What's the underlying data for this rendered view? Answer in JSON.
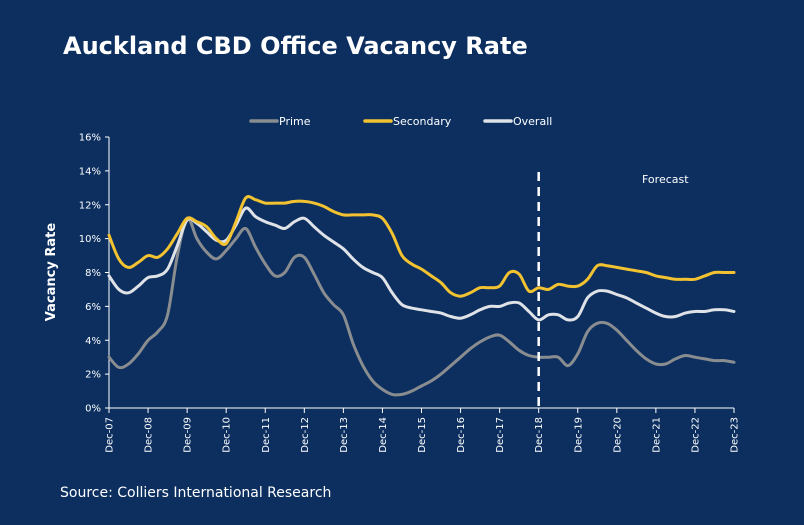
{
  "title": "Auckland CBD Office Vacancy Rate",
  "source": "Source: Colliers International Research",
  "chart_data": {
    "type": "line",
    "ylabel": "Vacancy Rate",
    "ylim": [
      0,
      16
    ],
    "yticks": [
      0,
      2,
      4,
      6,
      8,
      10,
      12,
      14,
      16
    ],
    "ytick_format": "percent",
    "xlim": [
      0,
      16
    ],
    "xtick_labels": [
      "Dec-07",
      "Dec-08",
      "Dec-09",
      "Dec-10",
      "Dec-11",
      "Dec-12",
      "Dec-13",
      "Dec-14",
      "Dec-15",
      "Dec-16",
      "Dec-17",
      "Dec-18",
      "Dec-19",
      "Dec-20",
      "Dec-21",
      "Dec-22",
      "Dec-23"
    ],
    "grid": false,
    "legend_position": "top",
    "forecast": {
      "label": "Forecast",
      "x": 11
    },
    "colors": {
      "background": "#0c2f60",
      "Prime": "#8a8d90",
      "Secondary": "#f2c230",
      "Overall": "#dfe2e6"
    },
    "series": [
      {
        "name": "Prime",
        "x": [
          0,
          0.25,
          0.5,
          0.75,
          1,
          1.25,
          1.5,
          1.75,
          2,
          2.25,
          2.5,
          2.75,
          3,
          3.25,
          3.5,
          3.75,
          4,
          4.25,
          4.5,
          4.75,
          5,
          5.25,
          5.5,
          5.75,
          6,
          6.25,
          6.5,
          6.75,
          7,
          7.25,
          7.5,
          7.75,
          8,
          8.25,
          8.5,
          8.75,
          9,
          9.25,
          9.5,
          9.75,
          10,
          10.25,
          10.5,
          10.75,
          11,
          11.25,
          11.5,
          11.75,
          12,
          12.25,
          12.5,
          12.75,
          13,
          13.25,
          13.5,
          13.75,
          14,
          14.25,
          14.5,
          14.75,
          15,
          15.25,
          15.5,
          15.75,
          16
        ],
        "values": [
          3.0,
          2.4,
          2.6,
          3.2,
          4.0,
          4.5,
          5.5,
          9.0,
          11.2,
          10.0,
          9.2,
          8.8,
          9.3,
          10.0,
          10.6,
          9.5,
          8.5,
          7.8,
          8.0,
          8.9,
          8.9,
          7.9,
          6.8,
          6.1,
          5.5,
          3.8,
          2.5,
          1.6,
          1.1,
          0.8,
          0.8,
          1.0,
          1.3,
          1.6,
          2.0,
          2.5,
          3.0,
          3.5,
          3.9,
          4.2,
          4.3,
          3.9,
          3.4,
          3.1,
          3.0,
          3.0,
          3.0,
          2.5,
          3.2,
          4.5,
          5.0,
          5.0,
          4.6,
          4.0,
          3.4,
          2.9,
          2.6,
          2.6,
          2.9,
          3.1,
          3.0,
          2.9,
          2.8,
          2.8,
          2.7
        ]
      },
      {
        "name": "Secondary",
        "x": [
          0,
          0.25,
          0.5,
          0.75,
          1,
          1.25,
          1.5,
          1.75,
          2,
          2.25,
          2.5,
          2.75,
          3,
          3.25,
          3.5,
          3.75,
          4,
          4.25,
          4.5,
          4.75,
          5,
          5.25,
          5.5,
          5.75,
          6,
          6.25,
          6.5,
          6.75,
          7,
          7.25,
          7.5,
          7.75,
          8,
          8.25,
          8.5,
          8.75,
          9,
          9.25,
          9.5,
          9.75,
          10,
          10.25,
          10.5,
          10.75,
          11,
          11.25,
          11.5,
          11.75,
          12,
          12.25,
          12.5,
          12.75,
          13,
          13.25,
          13.5,
          13.75,
          14,
          14.25,
          14.5,
          14.75,
          15,
          15.25,
          15.5,
          15.75,
          16
        ],
        "values": [
          10.2,
          8.8,
          8.3,
          8.6,
          9.0,
          8.9,
          9.4,
          10.3,
          11.2,
          11.0,
          10.7,
          10.0,
          9.7,
          11.0,
          12.4,
          12.3,
          12.1,
          12.1,
          12.1,
          12.2,
          12.2,
          12.1,
          11.9,
          11.6,
          11.4,
          11.4,
          11.4,
          11.4,
          11.2,
          10.3,
          9.0,
          8.5,
          8.2,
          7.8,
          7.4,
          6.8,
          6.6,
          6.8,
          7.1,
          7.1,
          7.2,
          8.0,
          7.9,
          6.9,
          7.1,
          7.0,
          7.3,
          7.2,
          7.2,
          7.6,
          8.4,
          8.4,
          8.3,
          8.2,
          8.1,
          8.0,
          7.8,
          7.7,
          7.6,
          7.6,
          7.6,
          7.8,
          8.0,
          8.0,
          8.0
        ]
      },
      {
        "name": "Overall",
        "x": [
          0,
          0.25,
          0.5,
          0.75,
          1,
          1.25,
          1.5,
          1.75,
          2,
          2.25,
          2.5,
          2.75,
          3,
          3.25,
          3.5,
          3.75,
          4,
          4.25,
          4.5,
          4.75,
          5,
          5.25,
          5.5,
          5.75,
          6,
          6.25,
          6.5,
          6.75,
          7,
          7.25,
          7.5,
          7.75,
          8,
          8.25,
          8.5,
          8.75,
          9,
          9.25,
          9.5,
          9.75,
          10,
          10.25,
          10.5,
          10.75,
          11,
          11.25,
          11.5,
          11.75,
          12,
          12.25,
          12.5,
          12.75,
          13,
          13.25,
          13.5,
          13.75,
          14,
          14.25,
          14.5,
          14.75,
          15,
          15.25,
          15.5,
          15.75,
          16
        ],
        "values": [
          7.8,
          7.0,
          6.8,
          7.2,
          7.7,
          7.8,
          8.2,
          9.6,
          11.1,
          10.9,
          10.4,
          9.9,
          9.9,
          10.8,
          11.8,
          11.3,
          11.0,
          10.8,
          10.6,
          11.0,
          11.2,
          10.7,
          10.2,
          9.8,
          9.4,
          8.8,
          8.3,
          8.0,
          7.7,
          6.8,
          6.1,
          5.9,
          5.8,
          5.7,
          5.6,
          5.4,
          5.3,
          5.5,
          5.8,
          6.0,
          6.0,
          6.2,
          6.2,
          5.7,
          5.2,
          5.5,
          5.5,
          5.2,
          5.4,
          6.5,
          6.9,
          6.9,
          6.7,
          6.5,
          6.2,
          5.9,
          5.6,
          5.4,
          5.4,
          5.6,
          5.7,
          5.7,
          5.8,
          5.8,
          5.7
        ]
      }
    ]
  }
}
